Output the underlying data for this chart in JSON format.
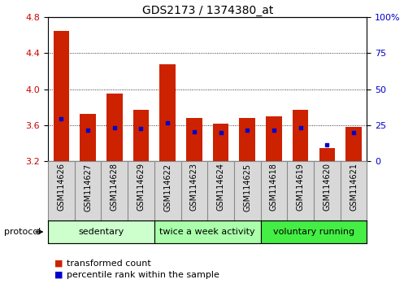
{
  "title": "GDS2173 / 1374380_at",
  "samples": [
    "GSM114626",
    "GSM114627",
    "GSM114628",
    "GSM114629",
    "GSM114622",
    "GSM114623",
    "GSM114624",
    "GSM114625",
    "GSM114618",
    "GSM114619",
    "GSM114620",
    "GSM114621"
  ],
  "red_bar_tops": [
    4.65,
    3.73,
    3.95,
    3.77,
    4.28,
    3.68,
    3.62,
    3.68,
    3.7,
    3.77,
    3.35,
    3.58
  ],
  "red_bar_bottoms": [
    3.2,
    3.2,
    3.2,
    3.2,
    3.2,
    3.2,
    3.2,
    3.2,
    3.2,
    3.2,
    3.2,
    3.2
  ],
  "blue_dot_values": [
    3.67,
    3.55,
    3.57,
    3.56,
    3.63,
    3.53,
    3.52,
    3.55,
    3.55,
    3.57,
    3.38,
    3.52
  ],
  "ylim": [
    3.2,
    4.8
  ],
  "yticks_left": [
    3.2,
    3.6,
    4.0,
    4.4,
    4.8
  ],
  "yticks_right": [
    0,
    25,
    50,
    75,
    100
  ],
  "yticks_right_labels": [
    "0",
    "25",
    "50",
    "75",
    "100%"
  ],
  "bar_color": "#cc2200",
  "dot_color": "#0000cc",
  "grid_color": "#000000",
  "groups": [
    {
      "label": "sedentary",
      "start": 0,
      "end": 4,
      "color": "#ccffcc"
    },
    {
      "label": "twice a week activity",
      "start": 4,
      "end": 8,
      "color": "#aaffaa"
    },
    {
      "label": "voluntary running",
      "start": 8,
      "end": 12,
      "color": "#44ee44"
    }
  ],
  "protocol_label": "protocol",
  "legend_items": [
    {
      "label": "transformed count",
      "color": "#cc2200"
    },
    {
      "label": "percentile rank within the sample",
      "color": "#0000cc"
    }
  ],
  "bar_width": 0.6,
  "tick_label_color_left": "#cc0000",
  "tick_label_color_right": "#0000cc",
  "label_box_color": "#d8d8d8",
  "label_box_border": "#888888"
}
